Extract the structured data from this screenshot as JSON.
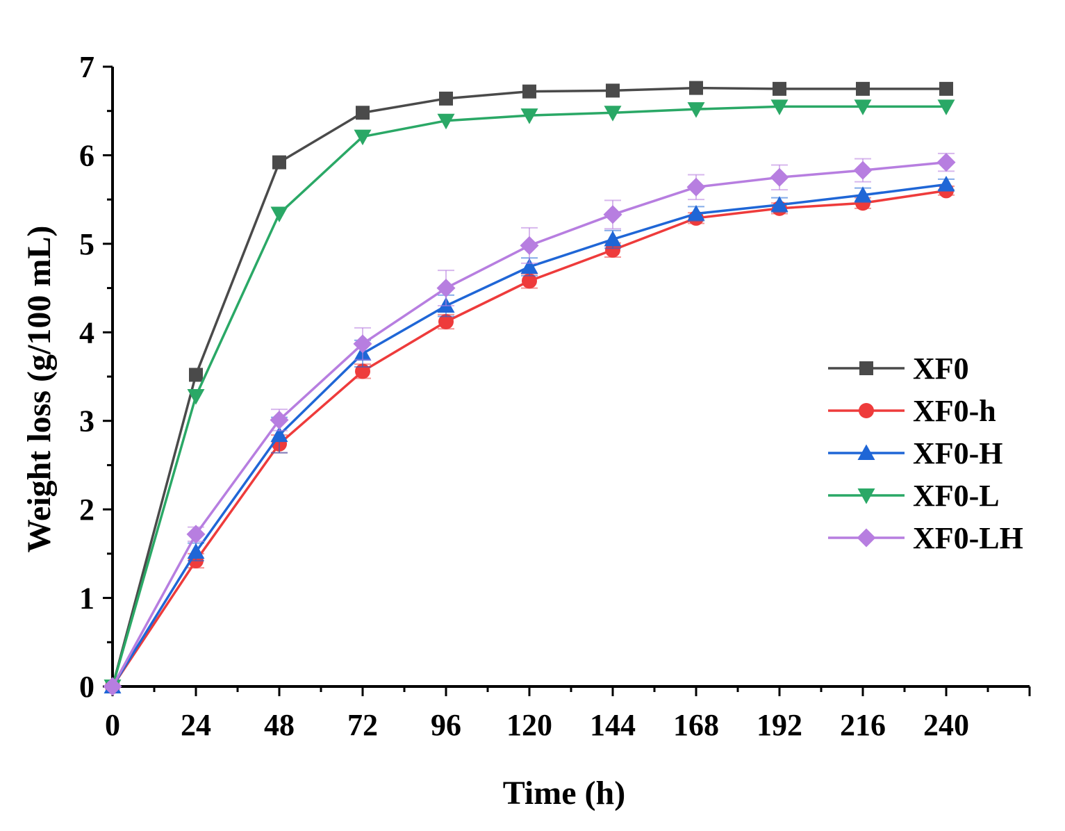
{
  "chart_data": {
    "type": "line",
    "title": "",
    "xlabel": "Time (h)",
    "ylabel": "Weight loss (g/100 mL)",
    "x": [
      0,
      24,
      48,
      72,
      96,
      120,
      144,
      168,
      192,
      216,
      240
    ],
    "x_ticks": [
      "0",
      "24",
      "48",
      "72",
      "96",
      "120",
      "144",
      "168",
      "192",
      "216",
      "240"
    ],
    "y_ticks": [
      "0",
      "1",
      "2",
      "3",
      "4",
      "5",
      "6",
      "7"
    ],
    "xlim": [
      0,
      264
    ],
    "ylim": [
      0,
      7
    ],
    "grid": false,
    "legend_position": "right",
    "series": [
      {
        "name": "XF0",
        "color": "#4a4a4a",
        "marker": "square",
        "values": [
          0,
          3.52,
          5.92,
          6.48,
          6.64,
          6.72,
          6.73,
          6.76,
          6.75,
          6.75,
          6.75
        ],
        "errors": [
          0,
          0.02,
          0.03,
          0.03,
          0.02,
          0.02,
          0.02,
          0.02,
          0.02,
          0.02,
          0.02
        ]
      },
      {
        "name": "XF0-h",
        "color": "#ee3b3b",
        "marker": "circle",
        "values": [
          0,
          1.42,
          2.74,
          3.56,
          4.12,
          4.58,
          4.93,
          5.29,
          5.4,
          5.46,
          5.6
        ],
        "errors": [
          0,
          0.08,
          0.1,
          0.08,
          0.08,
          0.08,
          0.08,
          0.06,
          0.06,
          0.06,
          0.05
        ]
      },
      {
        "name": "XF0-H",
        "color": "#1f66d6",
        "marker": "triangle-up",
        "values": [
          0,
          1.52,
          2.84,
          3.76,
          4.3,
          4.74,
          5.05,
          5.34,
          5.44,
          5.55,
          5.67
        ],
        "errors": [
          0,
          0.1,
          0.2,
          0.15,
          0.12,
          0.1,
          0.1,
          0.08,
          0.08,
          0.08,
          0.06
        ]
      },
      {
        "name": "XF0-L",
        "color": "#2aa866",
        "marker": "triangle-down",
        "values": [
          0,
          3.28,
          5.34,
          6.21,
          6.39,
          6.45,
          6.48,
          6.52,
          6.55,
          6.55,
          6.55
        ],
        "errors": [
          0,
          0.02,
          0.03,
          0.03,
          0.02,
          0.02,
          0.02,
          0.02,
          0.02,
          0.02,
          0.02
        ]
      },
      {
        "name": "XF0-LH",
        "color": "#b77ee0",
        "marker": "diamond",
        "values": [
          0,
          1.72,
          3.01,
          3.87,
          4.5,
          4.98,
          5.33,
          5.64,
          5.75,
          5.83,
          5.92
        ],
        "errors": [
          0,
          0.08,
          0.12,
          0.18,
          0.2,
          0.2,
          0.16,
          0.14,
          0.14,
          0.13,
          0.1
        ]
      }
    ]
  }
}
